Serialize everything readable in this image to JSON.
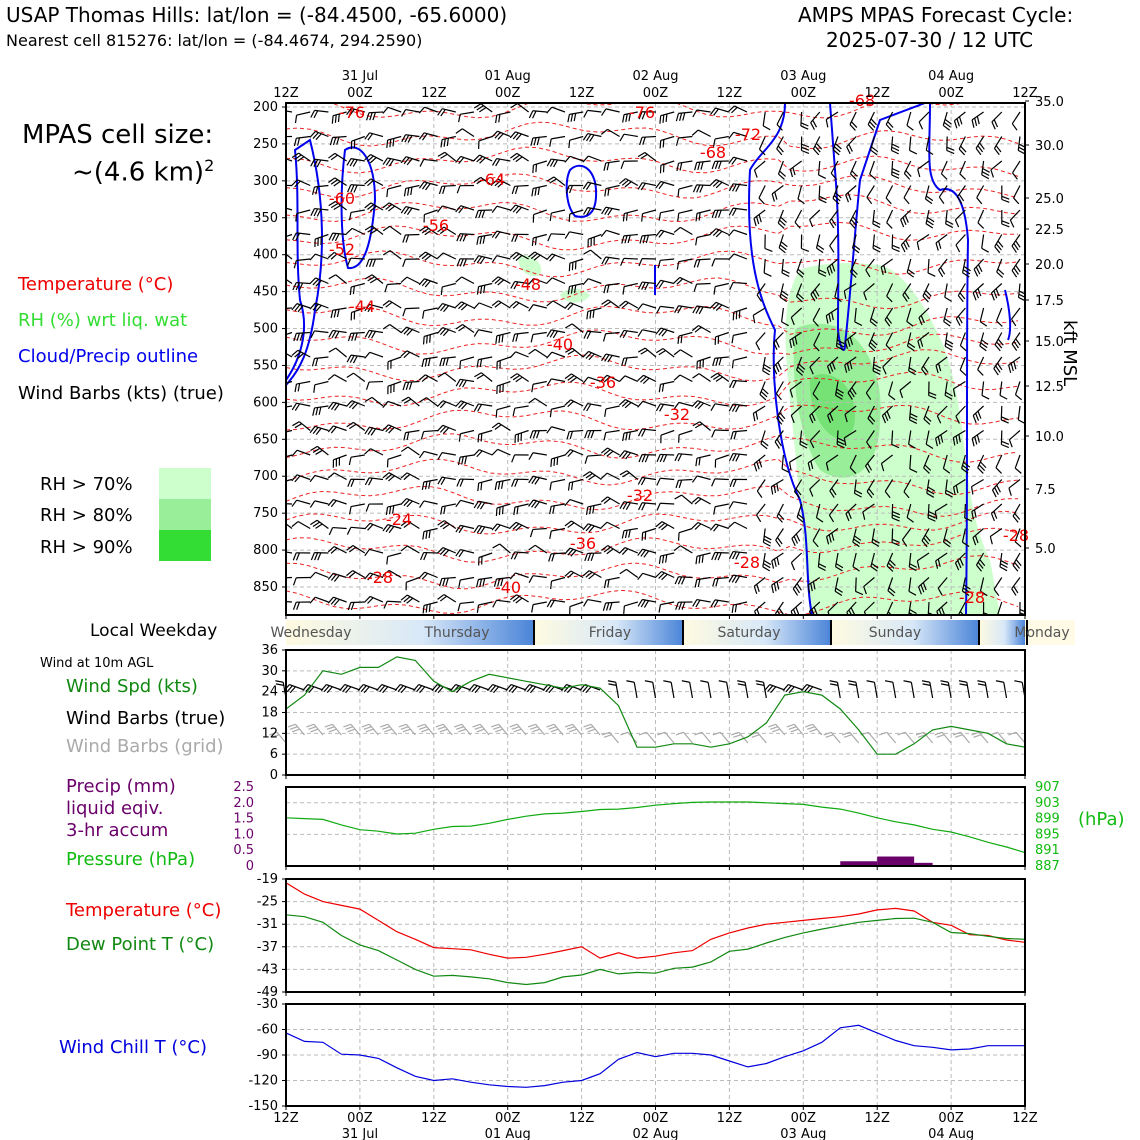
{
  "header": {
    "title": "USAP Thomas Hills: lat/lon = (-84.4500, -65.6000)",
    "subtitle": "Nearest cell 815276: lat/lon = (-84.4674, 294.2590)",
    "cycle_line1": "AMPS MPAS Forecast Cycle:",
    "cycle_line2": "2025-07-30 / 12 UTC"
  },
  "cell_size": {
    "line1": "MPAS cell size:",
    "line2": "~(4.6 km)",
    "sup": "2"
  },
  "legend": {
    "temperature": "Temperature (°C)",
    "rh": "RH (%) wrt liq. wat",
    "cloud": "Cloud/Precip outline",
    "barbs": "Wind Barbs (kts) (true)"
  },
  "rh_key": [
    {
      "label": "RH > 70%",
      "color": "#ccffcc"
    },
    {
      "label": "RH > 80%",
      "color": "#99ee99"
    },
    {
      "label": "RH > 90%",
      "color": "#33dd33"
    }
  ],
  "weekday_label": "Local Weekday",
  "weekdays": [
    "Wednesday",
    "Thursday",
    "Friday",
    "Saturday",
    "Sunday",
    "Monday"
  ],
  "wind10_title": "Wind at 10m AGL",
  "wind10_legend": {
    "speed": "Wind Spd (kts)",
    "barbs_true": "Wind Barbs (true)",
    "barbs_grid": "Wind Barbs (grid)"
  },
  "precip_legend": {
    "line1": "Precip (mm)",
    "line2": "liquid eqiv.",
    "line3": "3-hr accum",
    "pressure": "Pressure (hPa)"
  },
  "hpa_label": "(hPa)",
  "temp_legend": {
    "temp": "Temperature (°C)",
    "dew": "Dew Point T (°C)"
  },
  "windchill_legend": "Wind Chill T (°C)",
  "kft_label": "kft MSL",
  "colors": {
    "temp": "#ee0000",
    "pressure": "#11aa11",
    "wind_speed": "#118811",
    "cloud": "#0000ee",
    "precip": "#6a006a",
    "windchill": "#0000dd"
  },
  "chart_data": [
    {
      "type": "heatmap",
      "name": "cross-section",
      "x_top_ticks": [
        "12Z",
        "00Z",
        "12Z",
        "00Z",
        "12Z",
        "00Z",
        "12Z",
        "00Z",
        "12Z",
        "00Z",
        "12Z"
      ],
      "x_top_dates": [
        "31 Jul",
        "01 Aug",
        "02 Aug",
        "03 Aug",
        "04 Aug"
      ],
      "y_left_ticks": [
        "200",
        "250",
        "300",
        "350",
        "400",
        "450",
        "500",
        "550",
        "600",
        "650",
        "700",
        "750",
        "800",
        "850"
      ],
      "y_right_ticks": [
        "35.0",
        "30.0",
        "25.0",
        "22.5",
        "20.0",
        "17.5",
        "15.0",
        "12.5",
        "10.0",
        "7.5",
        "5.0"
      ],
      "temp_labels": [
        "-76",
        "-76",
        "-72",
        "-68",
        "-64",
        "-60",
        "-56",
        "-52",
        "-48",
        "-44",
        "-40",
        "-36",
        "-32",
        "-32",
        "-24",
        "-36",
        "-28",
        "-28",
        "-40",
        "-28",
        "-28",
        "-68"
      ]
    },
    {
      "type": "line",
      "name": "wind-10m",
      "ylim": [
        0,
        36
      ],
      "y_ticks": [
        "0",
        "6",
        "12",
        "18",
        "24",
        "30",
        "36"
      ],
      "x": [
        0,
        3,
        6,
        9,
        12,
        15,
        18,
        21,
        24,
        27,
        30,
        33,
        36,
        39,
        42,
        45,
        48,
        51,
        54,
        57,
        60,
        63,
        66,
        69,
        72,
        75,
        78,
        81,
        84,
        87,
        90,
        93,
        96,
        99,
        102,
        105,
        108,
        111,
        114,
        117,
        120
      ],
      "wind_speed": [
        19,
        23,
        30,
        29,
        31,
        31,
        34,
        33,
        27,
        24,
        27,
        29,
        28,
        27,
        26,
        25,
        26,
        25,
        20,
        8,
        8,
        9,
        9,
        8,
        9,
        11,
        15,
        23,
        24,
        23,
        19,
        13,
        6,
        6,
        9,
        13,
        14,
        13,
        12,
        9,
        8
      ]
    },
    {
      "type": "line",
      "name": "precip-pressure",
      "precip_ticks": [
        "0",
        "0.5",
        "1.0",
        "1.5",
        "2.0",
        "2.5"
      ],
      "pressure_ticks": [
        "887",
        "891",
        "895",
        "899",
        "903",
        "907"
      ],
      "pressure_ylim": [
        887,
        907
      ],
      "x": [
        0,
        3,
        6,
        9,
        12,
        15,
        18,
        21,
        24,
        27,
        30,
        33,
        36,
        39,
        42,
        45,
        48,
        51,
        54,
        57,
        60,
        63,
        66,
        69,
        72,
        75,
        78,
        81,
        84,
        87,
        90,
        93,
        96,
        99,
        102,
        105,
        108,
        111,
        114,
        117,
        120
      ],
      "pressure": [
        899.2,
        899,
        898.8,
        897.4,
        896.2,
        895.8,
        895.1,
        895.3,
        896.3,
        897,
        897.1,
        897.8,
        898.8,
        899.6,
        900.2,
        900.4,
        900.8,
        901.3,
        901.4,
        901.8,
        902.4,
        902.8,
        903.1,
        903.2,
        903.2,
        903.2,
        903,
        902.8,
        902.6,
        901.9,
        901.4,
        900.4,
        899.2,
        898.2,
        897.4,
        896.3,
        895.6,
        894.4,
        893,
        891.8,
        890.4
      ],
      "precip": [
        {
          "x0": 90,
          "x1": 96,
          "value": 0.15
        },
        {
          "x0": 96,
          "x1": 102,
          "value": 0.3
        },
        {
          "x0": 102,
          "x1": 105,
          "value": 0.1
        }
      ]
    },
    {
      "type": "line",
      "name": "temperature",
      "ylim": [
        -49,
        -19
      ],
      "y_ticks": [
        "-19",
        "-25",
        "-31",
        "-37",
        "-43",
        "-49"
      ],
      "x": [
        0,
        3,
        6,
        9,
        12,
        15,
        18,
        21,
        24,
        27,
        30,
        33,
        36,
        39,
        42,
        45,
        48,
        51,
        54,
        57,
        60,
        63,
        66,
        69,
        72,
        75,
        78,
        81,
        84,
        87,
        90,
        93,
        96,
        99,
        102,
        105,
        108,
        111,
        114,
        117,
        120
      ],
      "series": [
        {
          "name": "Temperature (°C)",
          "values": [
            -20,
            -23,
            -25,
            -26,
            -27,
            -30,
            -33,
            -35,
            -37.2,
            -37.5,
            -37.8,
            -39,
            -40,
            -39.8,
            -39,
            -38,
            -37,
            -40,
            -38.6,
            -40,
            -39.5,
            -38.6,
            -38,
            -35,
            -33.3,
            -32,
            -31,
            -30.5,
            -30,
            -29.5,
            -29,
            -28.3,
            -27.2,
            -26.8,
            -27.5,
            -30.5,
            -31.3,
            -33.8,
            -34,
            -35.2,
            -35.8
          ]
        },
        {
          "name": "Dew Point T (°C)",
          "values": [
            -28.5,
            -29,
            -30.5,
            -34,
            -36.5,
            -38,
            -40.5,
            -43,
            -44.8,
            -44.6,
            -45,
            -45.5,
            -46.5,
            -47,
            -46.5,
            -45,
            -44.5,
            -43,
            -44.2,
            -43.8,
            -44,
            -42.7,
            -42.4,
            -41,
            -38.2,
            -37.6,
            -36,
            -34.5,
            -33.3,
            -32.3,
            -31.4,
            -30.5,
            -30,
            -29.5,
            -29.4,
            -30.5,
            -33.2,
            -33.5,
            -34.2,
            -34.8,
            -35
          ]
        }
      ]
    },
    {
      "type": "line",
      "name": "wind-chill",
      "ylim": [
        -150,
        -30
      ],
      "y_ticks": [
        "-30",
        "-60",
        "-90",
        "-120",
        "-150"
      ],
      "x_ticks": [
        "12Z",
        "00Z",
        "12Z",
        "00Z",
        "12Z",
        "00Z",
        "12Z",
        "00Z",
        "12Z",
        "00Z",
        "12Z"
      ],
      "x_dates": [
        "31 Jul",
        "01 Aug",
        "02 Aug",
        "03 Aug",
        "04 Aug"
      ],
      "x": [
        0,
        3,
        6,
        9,
        12,
        15,
        18,
        21,
        24,
        27,
        30,
        33,
        36,
        39,
        42,
        45,
        48,
        51,
        54,
        57,
        60,
        63,
        66,
        69,
        72,
        75,
        78,
        81,
        84,
        87,
        90,
        93,
        96,
        99,
        102,
        105,
        108,
        111,
        114,
        117,
        120
      ],
      "values": [
        -64,
        -74,
        -75,
        -89,
        -90,
        -94,
        -105,
        -115,
        -120,
        -118,
        -122,
        -125,
        -127,
        -128,
        -126,
        -122,
        -120,
        -112,
        -95,
        -87,
        -92,
        -88,
        -88,
        -90,
        -97,
        -104,
        -100,
        -92,
        -85,
        -75,
        -58,
        -55,
        -64,
        -73,
        -79,
        -81,
        -84,
        -83,
        -79,
        -79,
        -79
      ]
    }
  ]
}
